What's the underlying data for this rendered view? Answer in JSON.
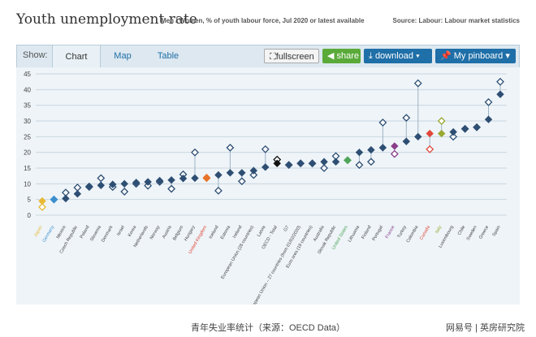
{
  "header": {
    "title": "Youth unemployment rate",
    "subtitle": "Men / Women, % of youth labour force, Jul 2020 or latest available",
    "source": "Source: Labour: Labour market statistics"
  },
  "toolbar": {
    "show_label": "Show:",
    "tabs": [
      "Chart",
      "Map",
      "Table"
    ],
    "fullscreen": "fullscreen",
    "share": "share",
    "download": "download ▾",
    "pinboard": "My pinboard ▾"
  },
  "caption": "青年失业率统计（来源：OECD Data）",
  "watermark": "网易号 | 英房研究院",
  "colors": {
    "navy": "#2e4f73",
    "highlight_red": "#e0463a",
    "highlight_purple": "#8a3e8a",
    "highlight_green": "#4fa55a",
    "highlight_olive": "#98a832",
    "highlight_orange": "#e8732a",
    "japan_gold": "#e8b931",
    "germany_blue": "#3c8fcf",
    "oecd_black": "#111111"
  },
  "chart_data": {
    "type": "scatter",
    "ylim": [
      0,
      45
    ],
    "yticks": [
      0,
      5,
      10,
      15,
      20,
      25,
      30,
      35,
      40,
      45
    ],
    "series": [
      {
        "name": "Men",
        "marker": "diamond-filled"
      },
      {
        "name": "Women",
        "marker": "diamond-open"
      }
    ],
    "categories": [
      "Japan",
      "Germany",
      "Mexico",
      "Czech Republic",
      "Poland",
      "Slovenia",
      "Denmark",
      "Israel",
      "Korea",
      "Netherlands",
      "Norway",
      "Austria",
      "Belgium",
      "Hungary",
      "United Kingdom",
      "Iceland",
      "Estonia",
      "Ireland",
      "European Union (28 countries)",
      "Latvia",
      "OECD - Total",
      "G7",
      "European Union – 27 countries (from 01/02/2020)",
      "Euro area (19 countries)",
      "Australia",
      "Slovak Republic",
      "United States",
      "Lithuania",
      "Finland",
      "Portugal",
      "France",
      "Turkey",
      "Colombia",
      "Canada",
      "Italy",
      "Luxembourg",
      "Chile",
      "Sweden",
      "Greece",
      "Spain"
    ],
    "men": [
      4.5,
      5.0,
      5.3,
      6.8,
      9.2,
      9.5,
      9.8,
      10.0,
      10.4,
      10.6,
      11.0,
      11.2,
      11.7,
      11.8,
      12.0,
      12.8,
      13.5,
      13.5,
      14.2,
      15.3,
      16.5,
      16.0,
      16.5,
      16.5,
      17.0,
      17.0,
      17.5,
      20.0,
      20.8,
      21.5,
      22.0,
      23.5,
      25.0,
      26.0,
      26.0,
      26.5,
      27.5,
      28.0,
      30.5,
      38.5
    ],
    "women": [
      2.6,
      5.0,
      7.2,
      8.8,
      9.0,
      11.8,
      9.0,
      7.5,
      10.0,
      9.4,
      10.6,
      8.4,
      13.0,
      20.0,
      11.8,
      7.8,
      21.5,
      10.8,
      12.8,
      21.0,
      17.7,
      16.0,
      16.5,
      16.5,
      15.0,
      18.8,
      17.5,
      16.0,
      17.0,
      29.5,
      19.5,
      31.0,
      42.0,
      21.0,
      30.0,
      25.0,
      27.5,
      28.0,
      36.0,
      42.5
    ],
    "label_colors": {
      "Japan": "#e8b931",
      "Germany": "#3c8fcf",
      "United Kingdom": "#e0463a",
      "United States": "#4fa55a",
      "France": "#8a3e8a",
      "Canada": "#e0463a",
      "Italy": "#98a832"
    },
    "marker_colors": {
      "Japan": "#e8b931",
      "Germany": "#3c8fcf",
      "United Kingdom": "#e8732a",
      "OECD - Total": "#111111",
      "United States": "#4fa55a",
      "France": "#8a3e8a",
      "Canada": "#e0463a",
      "Italy": "#98a832"
    }
  }
}
